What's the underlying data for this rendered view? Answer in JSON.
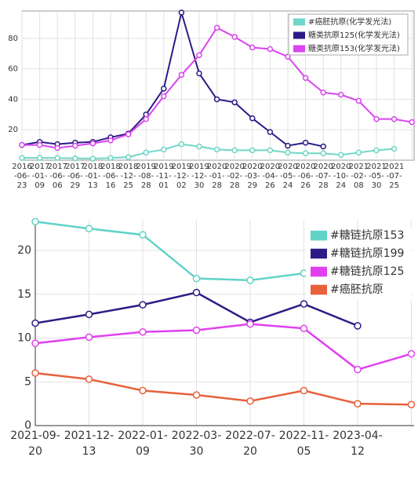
{
  "chart_data": [
    {
      "type": "line",
      "categories": [
        "2016-06-23",
        "2017-01-09",
        "2017-06-06",
        "2017-06-29",
        "2018-01-13",
        "2018-06-16",
        "2018-12-25",
        "2019-08-28",
        "2019-11-01",
        "2019-12-02",
        "2019-12-30",
        "2020-01-28",
        "2020-02-28",
        "2020-03-29",
        "2020-04-26",
        "2020-05-24",
        "2020-06-26",
        "2020-07-28",
        "2020-10-24",
        "2021-02-08",
        "2021-05-30",
        "2021-07-25",
        null
      ],
      "series": [
        {
          "name": "#癌胚抗原(化学发光法)",
          "color": "#6fd6c8",
          "values": [
            1.5,
            1.5,
            1.5,
            1.2,
            1.0,
            1.5,
            2,
            5,
            7,
            10.5,
            9,
            7,
            6.5,
            6.5,
            6.5,
            5,
            4.5,
            4.5,
            3.5,
            5,
            6.5,
            7.5,
            null
          ]
        },
        {
          "name": "糖类抗原125(化学发光法)",
          "color": "#2e1a87",
          "values": [
            10,
            12,
            10.5,
            11.5,
            12,
            15,
            17.5,
            30,
            47,
            97,
            57,
            40,
            38,
            27.5,
            18.5,
            9.5,
            11.5,
            9,
            null,
            null,
            null,
            null,
            null
          ]
        },
        {
          "name": "糖类抗原153(化学发光法)",
          "color": "#d946ef",
          "values": [
            10,
            10,
            8,
            9.5,
            11,
            13,
            17,
            27,
            42,
            56,
            69,
            87,
            81,
            74,
            73,
            68,
            54,
            44.5,
            43,
            39,
            27,
            27,
            25
          ]
        }
      ],
      "ylim": [
        0,
        98
      ],
      "yticks": [
        20,
        40,
        60,
        80
      ],
      "grid": true,
      "legend": "upper right"
    },
    {
      "type": "line",
      "categories": [
        "2021-09-20",
        "2021-12-13",
        "2022-01-09",
        "2022-03-30",
        "2022-07-20",
        "2022-11-05",
        "2023-04-12",
        null
      ],
      "series": [
        {
          "name": "#糖链抗原153",
          "color": "#5fd3c7",
          "values": [
            23.3,
            22.5,
            21.8,
            16.8,
            16.6,
            17.4,
            null,
            null
          ]
        },
        {
          "name": "#糖链抗原199",
          "color": "#2e1a87",
          "values": [
            11.7,
            12.7,
            13.8,
            15.2,
            11.8,
            13.9,
            11.4,
            null
          ]
        },
        {
          "name": "#糖链抗原125",
          "color": "#e040f0",
          "values": [
            9.4,
            10.1,
            10.7,
            10.9,
            11.6,
            11.1,
            6.4,
            8.2
          ]
        },
        {
          "name": "#癌胚抗原",
          "color": "#e8603c",
          "values": [
            6.0,
            5.3,
            4.0,
            3.5,
            2.8,
            4.0,
            2.5,
            2.4
          ]
        }
      ],
      "ylim": [
        0,
        23.5
      ],
      "yticks": [
        0,
        5,
        10,
        15,
        20
      ],
      "grid": true,
      "legend": "upper right"
    }
  ]
}
